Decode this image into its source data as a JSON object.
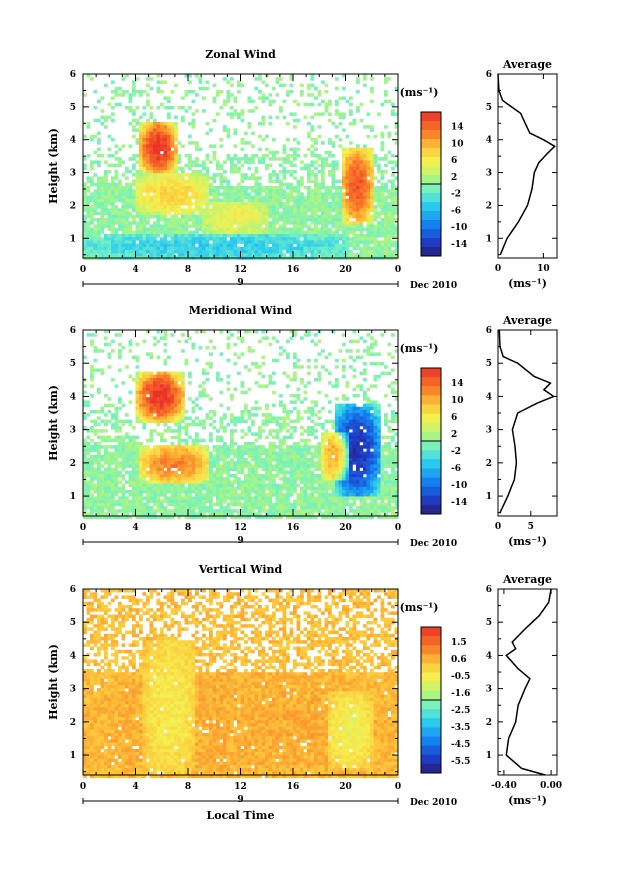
{
  "chart_data": [
    {
      "type": "heatmap",
      "title": "Zonal Wind",
      "xlabel": "",
      "ylabel": "Height (km)",
      "x_ticks": [
        "0",
        "4",
        "8",
        "12",
        "16",
        "20",
        "0"
      ],
      "y_ticks": [
        "1",
        "2",
        "3",
        "4",
        "5",
        "6"
      ],
      "xlim": [
        0,
        24
      ],
      "ylim": [
        0.4,
        6.0
      ],
      "day_label": "9",
      "date_label": "Dec 2010",
      "colorbar": {
        "unit": "(ms⁻¹)",
        "ticks": [
          "14",
          "10",
          "6",
          "2",
          "-2",
          "-6",
          "-10",
          "-14"
        ],
        "range": [
          -16,
          16
        ]
      },
      "features": [
        {
          "t0": 4.2,
          "t1": 7.0,
          "h0": 3.0,
          "h1": 4.6,
          "value": 14
        },
        {
          "t0": 3.8,
          "t1": 9.5,
          "h0": 1.8,
          "h1": 3.0,
          "value": 6
        },
        {
          "t0": 9.0,
          "t1": 14.0,
          "h0": 1.2,
          "h1": 2.2,
          "value": 4
        },
        {
          "t0": 19.5,
          "t1": 22.0,
          "h0": 1.5,
          "h1": 3.8,
          "value": 12
        },
        {
          "t0": 0.0,
          "t1": 20.0,
          "h0": 0.4,
          "h1": 1.2,
          "value": -4
        }
      ],
      "profile": {
        "title": "Average",
        "xlabel": "(ms⁻¹)",
        "x_ticks": [
          "0",
          "10"
        ],
        "xlim": [
          0,
          13
        ],
        "heights": [
          0.5,
          1.0,
          1.5,
          2.0,
          2.5,
          3.0,
          3.3,
          3.6,
          3.8,
          4.0,
          4.2,
          4.5,
          4.8,
          5.0,
          5.2,
          5.5,
          6.0
        ],
        "values": [
          0.5,
          2.0,
          4.5,
          6.5,
          7.5,
          8.0,
          9.0,
          11.0,
          12.5,
          10.0,
          7.0,
          6.0,
          5.0,
          3.0,
          1.0,
          0.2,
          0.0
        ]
      }
    },
    {
      "type": "heatmap",
      "title": "Meridional Wind",
      "xlabel": "",
      "ylabel": "Height (km)",
      "x_ticks": [
        "0",
        "4",
        "8",
        "12",
        "16",
        "20",
        "0"
      ],
      "y_ticks": [
        "1",
        "2",
        "3",
        "4",
        "5",
        "6"
      ],
      "xlim": [
        0,
        24
      ],
      "ylim": [
        0.4,
        6.0
      ],
      "day_label": "9",
      "date_label": "Dec 2010",
      "colorbar": {
        "unit": "(ms⁻¹)",
        "ticks": [
          "14",
          "10",
          "6",
          "2",
          "-2",
          "-6",
          "-10",
          "-14"
        ],
        "range": [
          -16,
          16
        ]
      },
      "features": [
        {
          "t0": 4.0,
          "t1": 7.5,
          "h0": 3.3,
          "h1": 4.8,
          "value": 14
        },
        {
          "t0": 4.2,
          "t1": 9.5,
          "h0": 1.4,
          "h1": 2.6,
          "value": 10
        },
        {
          "t0": 19.0,
          "t1": 22.5,
          "h0": 1.0,
          "h1": 3.8,
          "value": -12
        },
        {
          "t0": 18.0,
          "t1": 20.0,
          "h0": 1.5,
          "h1": 3.0,
          "value": 8
        }
      ],
      "profile": {
        "title": "Average",
        "xlabel": "(ms⁻¹)",
        "x_ticks": [
          "0",
          "5"
        ],
        "xlim": [
          0,
          9
        ],
        "heights": [
          0.5,
          1.0,
          1.5,
          2.0,
          2.5,
          3.0,
          3.5,
          3.8,
          4.0,
          4.2,
          4.4,
          4.6,
          5.0,
          5.2,
          5.5,
          6.0
        ],
        "values": [
          0.3,
          1.5,
          2.5,
          2.8,
          2.6,
          2.2,
          3.0,
          6.0,
          8.5,
          7.0,
          8.0,
          5.5,
          3.0,
          0.8,
          0.3,
          0.2
        ]
      }
    },
    {
      "type": "heatmap",
      "title": "Vertical Wind",
      "xlabel": "Local Time",
      "ylabel": "Height (km)",
      "x_ticks": [
        "0",
        "4",
        "8",
        "12",
        "16",
        "20",
        "0"
      ],
      "y_ticks": [
        "1",
        "2",
        "3",
        "4",
        "5",
        "6"
      ],
      "xlim": [
        0,
        24
      ],
      "ylim": [
        0.4,
        6.0
      ],
      "day_label": "9",
      "date_label": "Dec 2010",
      "colorbar": {
        "unit": "(ms⁻¹)",
        "ticks": [
          "1.5",
          "0.6",
          "-0.5",
          "-1.6",
          "-2.5",
          "-3.5",
          "-4.5",
          "-5.5"
        ],
        "range": [
          -6.0,
          2.0
        ]
      },
      "features": [
        {
          "t0": 0.0,
          "t1": 24.0,
          "h0": 0.4,
          "h1": 3.5,
          "value": 0.3
        },
        {
          "t0": 4.5,
          "t1": 8.5,
          "h0": 0.5,
          "h1": 4.5,
          "value": -0.7
        },
        {
          "t0": 18.5,
          "t1": 22.0,
          "h0": 0.7,
          "h1": 3.0,
          "value": -0.9
        }
      ],
      "profile": {
        "title": "Average",
        "xlabel": "(ms⁻¹)",
        "x_ticks": [
          "-0.40",
          "0.00"
        ],
        "xlim": [
          -0.45,
          0.05
        ],
        "heights": [
          0.4,
          0.6,
          1.0,
          1.5,
          2.0,
          2.5,
          3.0,
          3.3,
          3.6,
          4.0,
          4.2,
          4.4,
          4.8,
          5.2,
          5.6,
          6.0
        ],
        "values": [
          -0.05,
          -0.25,
          -0.38,
          -0.36,
          -0.3,
          -0.28,
          -0.22,
          -0.18,
          -0.28,
          -0.38,
          -0.3,
          -0.33,
          -0.22,
          -0.1,
          -0.02,
          0.0
        ]
      }
    }
  ]
}
